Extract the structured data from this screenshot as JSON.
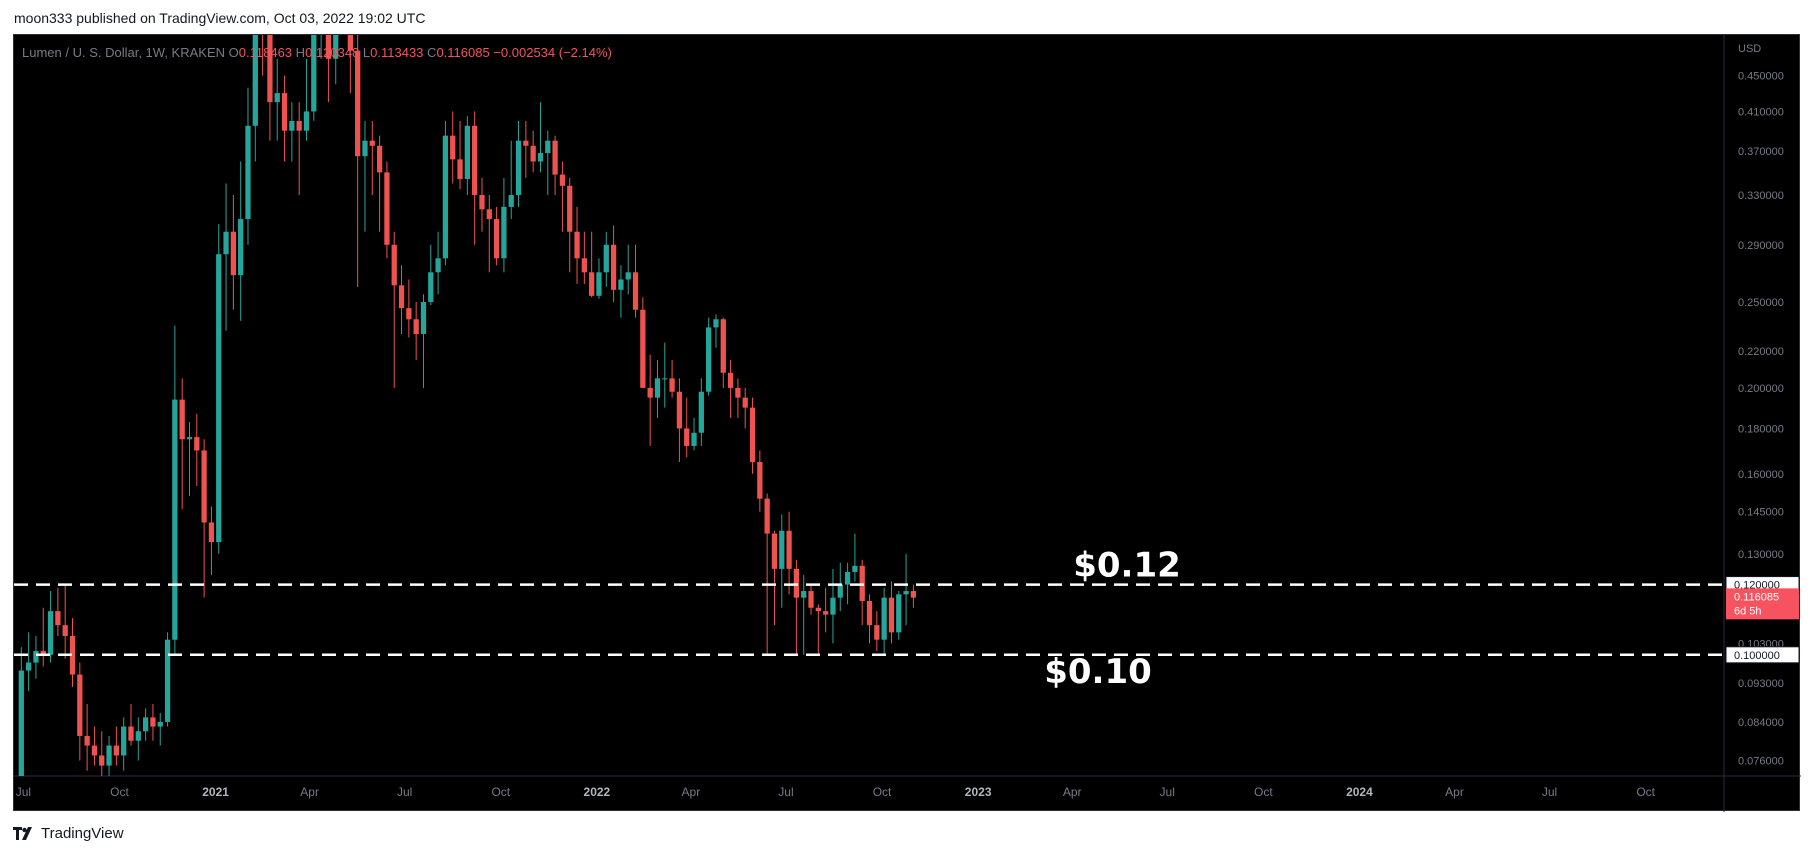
{
  "publisher": "moon333 published on TradingView.com, Oct 03, 2022 19:02 UTC",
  "legend": {
    "symbol": "Lumen / U. S. Dollar, 1W, KRAKEN",
    "o_label": "O",
    "o": "0.118463",
    "h_label": "H",
    "h": "0.120348",
    "l_label": "L",
    "l": "0.113433",
    "c_label": "C",
    "c": "0.116085",
    "change": "−0.002534 (−2.14%)"
  },
  "currency_label": "USD",
  "footer_brand": "TradingView",
  "last_price_badge": {
    "price": "0.116085",
    "countdown": "6d 5h",
    "color": "#f7525f"
  },
  "colors": {
    "up": "#26a69a",
    "down": "#ef5350",
    "background": "#000000",
    "axis_text": "#787b86"
  },
  "chart_data": {
    "type": "candlestick",
    "symbol": "Lumen / U. S. Dollar, 1W, KRAKEN",
    "y_scale": "log",
    "ylim": [
      0.073,
      0.5
    ],
    "y_ticks": [
      "0.450000",
      "0.410000",
      "0.370000",
      "0.330000",
      "0.290000",
      "0.250000",
      "0.220000",
      "0.200000",
      "0.180000",
      "0.160000",
      "0.145000",
      "0.130000",
      "0.103000",
      "0.093000",
      "0.084000",
      "0.076000"
    ],
    "x_ticks": [
      {
        "label": "Jul",
        "date": "2020-07-01"
      },
      {
        "label": "Oct",
        "date": "2020-10-01"
      },
      {
        "label": "2021",
        "date": "2021-01-01",
        "bold": true
      },
      {
        "label": "Apr",
        "date": "2021-04-01"
      },
      {
        "label": "Jul",
        "date": "2021-07-01"
      },
      {
        "label": "Oct",
        "date": "2021-10-01"
      },
      {
        "label": "2022",
        "date": "2022-01-01",
        "bold": true
      },
      {
        "label": "Apr",
        "date": "2022-04-01"
      },
      {
        "label": "Jul",
        "date": "2022-07-01"
      },
      {
        "label": "Oct",
        "date": "2022-10-01"
      },
      {
        "label": "2023",
        "date": "2023-01-01",
        "bold": true
      },
      {
        "label": "Apr",
        "date": "2023-04-01"
      },
      {
        "label": "Jul",
        "date": "2023-07-01"
      },
      {
        "label": "Oct",
        "date": "2023-10-01"
      },
      {
        "label": "2024",
        "date": "2024-01-01",
        "bold": true
      },
      {
        "label": "Apr",
        "date": "2024-04-01"
      },
      {
        "label": "Jul",
        "date": "2024-07-01"
      },
      {
        "label": "Oct",
        "date": "2024-10-01"
      }
    ],
    "xlim": [
      "2020-06-22",
      "2024-12-15"
    ],
    "horizontal_lines": [
      {
        "value": 0.12,
        "label": "$0.12",
        "axis_label": "0.120000"
      },
      {
        "value": 0.1,
        "label": "$0.10",
        "axis_label": "0.100000"
      }
    ],
    "candles": [
      {
        "date": "2020-06-29",
        "o": 0.07,
        "h": 0.102,
        "l": 0.068,
        "c": 0.096
      },
      {
        "date": "2020-07-06",
        "o": 0.096,
        "h": 0.106,
        "l": 0.091,
        "c": 0.098
      },
      {
        "date": "2020-07-13",
        "o": 0.098,
        "h": 0.105,
        "l": 0.094,
        "c": 0.101
      },
      {
        "date": "2020-07-20",
        "o": 0.101,
        "h": 0.113,
        "l": 0.097,
        "c": 0.1
      },
      {
        "date": "2020-07-27",
        "o": 0.1,
        "h": 0.118,
        "l": 0.098,
        "c": 0.112
      },
      {
        "date": "2020-08-03",
        "o": 0.112,
        "h": 0.119,
        "l": 0.105,
        "c": 0.108
      },
      {
        "date": "2020-08-10",
        "o": 0.108,
        "h": 0.12,
        "l": 0.099,
        "c": 0.105
      },
      {
        "date": "2020-08-17",
        "o": 0.105,
        "h": 0.11,
        "l": 0.092,
        "c": 0.095
      },
      {
        "date": "2020-08-24",
        "o": 0.095,
        "h": 0.098,
        "l": 0.076,
        "c": 0.081
      },
      {
        "date": "2020-08-31",
        "o": 0.081,
        "h": 0.088,
        "l": 0.074,
        "c": 0.079
      },
      {
        "date": "2020-09-07",
        "o": 0.079,
        "h": 0.083,
        "l": 0.075,
        "c": 0.077
      },
      {
        "date": "2020-09-14",
        "o": 0.077,
        "h": 0.082,
        "l": 0.072,
        "c": 0.075
      },
      {
        "date": "2020-09-21",
        "o": 0.075,
        "h": 0.081,
        "l": 0.071,
        "c": 0.079
      },
      {
        "date": "2020-09-28",
        "o": 0.079,
        "h": 0.083,
        "l": 0.075,
        "c": 0.077
      },
      {
        "date": "2020-10-05",
        "o": 0.077,
        "h": 0.085,
        "l": 0.074,
        "c": 0.083
      },
      {
        "date": "2020-10-12",
        "o": 0.083,
        "h": 0.088,
        "l": 0.079,
        "c": 0.08
      },
      {
        "date": "2020-10-19",
        "o": 0.08,
        "h": 0.085,
        "l": 0.076,
        "c": 0.082
      },
      {
        "date": "2020-10-26",
        "o": 0.082,
        "h": 0.087,
        "l": 0.08,
        "c": 0.085
      },
      {
        "date": "2020-11-02",
        "o": 0.085,
        "h": 0.088,
        "l": 0.08,
        "c": 0.083
      },
      {
        "date": "2020-11-09",
        "o": 0.083,
        "h": 0.086,
        "l": 0.079,
        "c": 0.084
      },
      {
        "date": "2020-11-16",
        "o": 0.084,
        "h": 0.106,
        "l": 0.083,
        "c": 0.104
      },
      {
        "date": "2020-11-23",
        "o": 0.104,
        "h": 0.235,
        "l": 0.1,
        "c": 0.194
      },
      {
        "date": "2020-11-30",
        "o": 0.194,
        "h": 0.205,
        "l": 0.146,
        "c": 0.175
      },
      {
        "date": "2020-12-07",
        "o": 0.175,
        "h": 0.183,
        "l": 0.151,
        "c": 0.176
      },
      {
        "date": "2020-12-14",
        "o": 0.176,
        "h": 0.187,
        "l": 0.155,
        "c": 0.17
      },
      {
        "date": "2020-12-21",
        "o": 0.17,
        "h": 0.175,
        "l": 0.116,
        "c": 0.141
      },
      {
        "date": "2020-12-28",
        "o": 0.141,
        "h": 0.147,
        "l": 0.123,
        "c": 0.134
      },
      {
        "date": "2021-01-04",
        "o": 0.134,
        "h": 0.306,
        "l": 0.13,
        "c": 0.283
      },
      {
        "date": "2021-01-11",
        "o": 0.283,
        "h": 0.34,
        "l": 0.232,
        "c": 0.3
      },
      {
        "date": "2021-01-18",
        "o": 0.3,
        "h": 0.33,
        "l": 0.245,
        "c": 0.268
      },
      {
        "date": "2021-01-25",
        "o": 0.268,
        "h": 0.36,
        "l": 0.238,
        "c": 0.31
      },
      {
        "date": "2021-02-01",
        "o": 0.31,
        "h": 0.436,
        "l": 0.29,
        "c": 0.395
      },
      {
        "date": "2021-02-08",
        "o": 0.395,
        "h": 0.56,
        "l": 0.36,
        "c": 0.54
      },
      {
        "date": "2021-02-15",
        "o": 0.54,
        "h": 0.6,
        "l": 0.45,
        "c": 0.52
      },
      {
        "date": "2021-02-22",
        "o": 0.52,
        "h": 0.54,
        "l": 0.38,
        "c": 0.42
      },
      {
        "date": "2021-03-01",
        "o": 0.42,
        "h": 0.47,
        "l": 0.38,
        "c": 0.43
      },
      {
        "date": "2021-03-08",
        "o": 0.43,
        "h": 0.45,
        "l": 0.36,
        "c": 0.39
      },
      {
        "date": "2021-03-15",
        "o": 0.39,
        "h": 0.42,
        "l": 0.36,
        "c": 0.4
      },
      {
        "date": "2021-03-22",
        "o": 0.4,
        "h": 0.42,
        "l": 0.33,
        "c": 0.39
      },
      {
        "date": "2021-03-29",
        "o": 0.39,
        "h": 0.47,
        "l": 0.38,
        "c": 0.41
      },
      {
        "date": "2021-04-05",
        "o": 0.41,
        "h": 0.56,
        "l": 0.4,
        "c": 0.54
      },
      {
        "date": "2021-04-12",
        "o": 0.54,
        "h": 0.79,
        "l": 0.47,
        "c": 0.58
      },
      {
        "date": "2021-04-19",
        "o": 0.58,
        "h": 0.6,
        "l": 0.42,
        "c": 0.47
      },
      {
        "date": "2021-04-26",
        "o": 0.47,
        "h": 0.58,
        "l": 0.44,
        "c": 0.54
      },
      {
        "date": "2021-05-03",
        "o": 0.54,
        "h": 0.76,
        "l": 0.52,
        "c": 0.65
      },
      {
        "date": "2021-05-10",
        "o": 0.65,
        "h": 0.69,
        "l": 0.43,
        "c": 0.48
      },
      {
        "date": "2021-05-17",
        "o": 0.48,
        "h": 0.56,
        "l": 0.26,
        "c": 0.365
      },
      {
        "date": "2021-05-24",
        "o": 0.365,
        "h": 0.4,
        "l": 0.3,
        "c": 0.38
      },
      {
        "date": "2021-05-31",
        "o": 0.38,
        "h": 0.4,
        "l": 0.33,
        "c": 0.375
      },
      {
        "date": "2021-06-07",
        "o": 0.375,
        "h": 0.385,
        "l": 0.3,
        "c": 0.35
      },
      {
        "date": "2021-06-14",
        "o": 0.35,
        "h": 0.36,
        "l": 0.28,
        "c": 0.29
      },
      {
        "date": "2021-06-21",
        "o": 0.29,
        "h": 0.3,
        "l": 0.2,
        "c": 0.261
      },
      {
        "date": "2021-06-28",
        "o": 0.261,
        "h": 0.275,
        "l": 0.23,
        "c": 0.246
      },
      {
        "date": "2021-07-05",
        "o": 0.246,
        "h": 0.265,
        "l": 0.228,
        "c": 0.239
      },
      {
        "date": "2021-07-12",
        "o": 0.239,
        "h": 0.25,
        "l": 0.215,
        "c": 0.23
      },
      {
        "date": "2021-07-19",
        "o": 0.23,
        "h": 0.255,
        "l": 0.2,
        "c": 0.25
      },
      {
        "date": "2021-07-26",
        "o": 0.25,
        "h": 0.29,
        "l": 0.248,
        "c": 0.27
      },
      {
        "date": "2021-08-02",
        "o": 0.27,
        "h": 0.3,
        "l": 0.255,
        "c": 0.28
      },
      {
        "date": "2021-08-09",
        "o": 0.28,
        "h": 0.4,
        "l": 0.275,
        "c": 0.385
      },
      {
        "date": "2021-08-16",
        "o": 0.385,
        "h": 0.41,
        "l": 0.34,
        "c": 0.362
      },
      {
        "date": "2021-08-23",
        "o": 0.362,
        "h": 0.4,
        "l": 0.335,
        "c": 0.344
      },
      {
        "date": "2021-08-30",
        "o": 0.344,
        "h": 0.405,
        "l": 0.33,
        "c": 0.395
      },
      {
        "date": "2021-09-06",
        "o": 0.395,
        "h": 0.41,
        "l": 0.29,
        "c": 0.33
      },
      {
        "date": "2021-09-13",
        "o": 0.33,
        "h": 0.345,
        "l": 0.3,
        "c": 0.318
      },
      {
        "date": "2021-09-20",
        "o": 0.318,
        "h": 0.33,
        "l": 0.27,
        "c": 0.31
      },
      {
        "date": "2021-09-27",
        "o": 0.31,
        "h": 0.32,
        "l": 0.275,
        "c": 0.28
      },
      {
        "date": "2021-10-04",
        "o": 0.28,
        "h": 0.345,
        "l": 0.27,
        "c": 0.32
      },
      {
        "date": "2021-10-11",
        "o": 0.32,
        "h": 0.38,
        "l": 0.31,
        "c": 0.33
      },
      {
        "date": "2021-10-18",
        "o": 0.33,
        "h": 0.4,
        "l": 0.32,
        "c": 0.38
      },
      {
        "date": "2021-10-25",
        "o": 0.38,
        "h": 0.4,
        "l": 0.345,
        "c": 0.375
      },
      {
        "date": "2021-11-01",
        "o": 0.375,
        "h": 0.39,
        "l": 0.35,
        "c": 0.36
      },
      {
        "date": "2021-11-08",
        "o": 0.36,
        "h": 0.42,
        "l": 0.35,
        "c": 0.368
      },
      {
        "date": "2021-11-15",
        "o": 0.368,
        "h": 0.39,
        "l": 0.33,
        "c": 0.38
      },
      {
        "date": "2021-11-22",
        "o": 0.38,
        "h": 0.385,
        "l": 0.33,
        "c": 0.348
      },
      {
        "date": "2021-11-29",
        "o": 0.348,
        "h": 0.36,
        "l": 0.3,
        "c": 0.338
      },
      {
        "date": "2021-12-06",
        "o": 0.338,
        "h": 0.345,
        "l": 0.27,
        "c": 0.3
      },
      {
        "date": "2021-12-13",
        "o": 0.3,
        "h": 0.32,
        "l": 0.262,
        "c": 0.28
      },
      {
        "date": "2021-12-20",
        "o": 0.28,
        "h": 0.3,
        "l": 0.262,
        "c": 0.27
      },
      {
        "date": "2021-12-27",
        "o": 0.27,
        "h": 0.3,
        "l": 0.253,
        "c": 0.254
      },
      {
        "date": "2022-01-03",
        "o": 0.254,
        "h": 0.28,
        "l": 0.252,
        "c": 0.27
      },
      {
        "date": "2022-01-10",
        "o": 0.27,
        "h": 0.3,
        "l": 0.26,
        "c": 0.29
      },
      {
        "date": "2022-01-17",
        "o": 0.29,
        "h": 0.305,
        "l": 0.25,
        "c": 0.258
      },
      {
        "date": "2022-01-24",
        "o": 0.258,
        "h": 0.275,
        "l": 0.24,
        "c": 0.265
      },
      {
        "date": "2022-01-31",
        "o": 0.265,
        "h": 0.29,
        "l": 0.255,
        "c": 0.27
      },
      {
        "date": "2022-02-07",
        "o": 0.27,
        "h": 0.29,
        "l": 0.24,
        "c": 0.245
      },
      {
        "date": "2022-02-14",
        "o": 0.245,
        "h": 0.253,
        "l": 0.2,
        "c": 0.2
      },
      {
        "date": "2022-02-21",
        "o": 0.2,
        "h": 0.218,
        "l": 0.172,
        "c": 0.195
      },
      {
        "date": "2022-02-28",
        "o": 0.195,
        "h": 0.215,
        "l": 0.185,
        "c": 0.205
      },
      {
        "date": "2022-03-07",
        "o": 0.205,
        "h": 0.225,
        "l": 0.19,
        "c": 0.205
      },
      {
        "date": "2022-03-14",
        "o": 0.205,
        "h": 0.215,
        "l": 0.195,
        "c": 0.198
      },
      {
        "date": "2022-03-21",
        "o": 0.198,
        "h": 0.205,
        "l": 0.165,
        "c": 0.18
      },
      {
        "date": "2022-03-28",
        "o": 0.18,
        "h": 0.195,
        "l": 0.167,
        "c": 0.172
      },
      {
        "date": "2022-04-04",
        "o": 0.172,
        "h": 0.185,
        "l": 0.17,
        "c": 0.178
      },
      {
        "date": "2022-04-11",
        "o": 0.178,
        "h": 0.205,
        "l": 0.172,
        "c": 0.198
      },
      {
        "date": "2022-04-18",
        "o": 0.198,
        "h": 0.24,
        "l": 0.196,
        "c": 0.234
      },
      {
        "date": "2022-04-25",
        "o": 0.234,
        "h": 0.242,
        "l": 0.222,
        "c": 0.239
      },
      {
        "date": "2022-05-02",
        "o": 0.239,
        "h": 0.24,
        "l": 0.2,
        "c": 0.208
      },
      {
        "date": "2022-05-09",
        "o": 0.208,
        "h": 0.215,
        "l": 0.185,
        "c": 0.2
      },
      {
        "date": "2022-05-16",
        "o": 0.2,
        "h": 0.205,
        "l": 0.185,
        "c": 0.195
      },
      {
        "date": "2022-05-23",
        "o": 0.195,
        "h": 0.2,
        "l": 0.18,
        "c": 0.19
      },
      {
        "date": "2022-05-30",
        "o": 0.19,
        "h": 0.195,
        "l": 0.16,
        "c": 0.165
      },
      {
        "date": "2022-06-06",
        "o": 0.165,
        "h": 0.17,
        "l": 0.145,
        "c": 0.15
      },
      {
        "date": "2022-06-13",
        "o": 0.15,
        "h": 0.152,
        "l": 0.1,
        "c": 0.137
      },
      {
        "date": "2022-06-20",
        "o": 0.137,
        "h": 0.138,
        "l": 0.108,
        "c": 0.125
      },
      {
        "date": "2022-06-27",
        "o": 0.125,
        "h": 0.144,
        "l": 0.113,
        "c": 0.138
      },
      {
        "date": "2022-07-04",
        "o": 0.138,
        "h": 0.145,
        "l": 0.117,
        "c": 0.125
      },
      {
        "date": "2022-07-11",
        "o": 0.125,
        "h": 0.128,
        "l": 0.1,
        "c": 0.116
      },
      {
        "date": "2022-07-18",
        "o": 0.116,
        "h": 0.123,
        "l": 0.1,
        "c": 0.118
      },
      {
        "date": "2022-07-25",
        "o": 0.118,
        "h": 0.12,
        "l": 0.111,
        "c": 0.113
      },
      {
        "date": "2022-08-01",
        "o": 0.113,
        "h": 0.114,
        "l": 0.1,
        "c": 0.112
      },
      {
        "date": "2022-08-08",
        "o": 0.112,
        "h": 0.119,
        "l": 0.106,
        "c": 0.111
      },
      {
        "date": "2022-08-15",
        "o": 0.111,
        "h": 0.125,
        "l": 0.103,
        "c": 0.116
      },
      {
        "date": "2022-08-22",
        "o": 0.116,
        "h": 0.127,
        "l": 0.112,
        "c": 0.12
      },
      {
        "date": "2022-08-29",
        "o": 0.12,
        "h": 0.127,
        "l": 0.114,
        "c": 0.124
      },
      {
        "date": "2022-09-05",
        "o": 0.124,
        "h": 0.137,
        "l": 0.121,
        "c": 0.126
      },
      {
        "date": "2022-09-12",
        "o": 0.126,
        "h": 0.128,
        "l": 0.108,
        "c": 0.115
      },
      {
        "date": "2022-09-19",
        "o": 0.115,
        "h": 0.117,
        "l": 0.103,
        "c": 0.108
      },
      {
        "date": "2022-09-26",
        "o": 0.108,
        "h": 0.112,
        "l": 0.101,
        "c": 0.104
      },
      {
        "date": "2022-10-03",
        "o": 0.104,
        "h": 0.119,
        "l": 0.1,
        "c": 0.116
      },
      {
        "date": "2022-10-10",
        "o": 0.116,
        "h": 0.121,
        "l": 0.103,
        "c": 0.106
      },
      {
        "date": "2022-10-17",
        "o": 0.106,
        "h": 0.118,
        "l": 0.104,
        "c": 0.117
      },
      {
        "date": "2022-10-24",
        "o": 0.117,
        "h": 0.13,
        "l": 0.108,
        "c": 0.118
      },
      {
        "date": "2022-10-31",
        "o": 0.118,
        "h": 0.12,
        "l": 0.113,
        "c": 0.116
      }
    ]
  }
}
